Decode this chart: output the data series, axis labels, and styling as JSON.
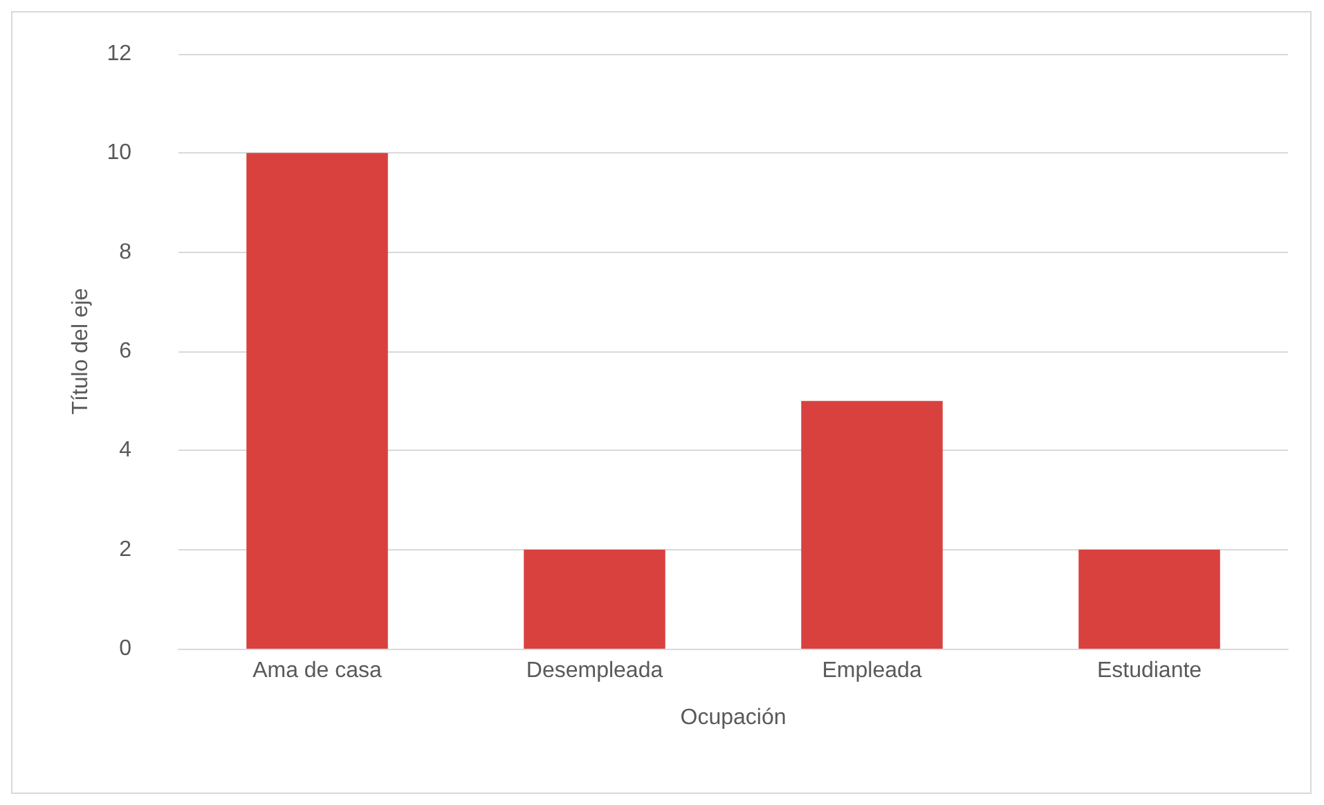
{
  "chart_data": {
    "type": "bar",
    "xlabel": "Ocupación",
    "ylabel": "Título del eje",
    "categories": [
      "Ama de casa",
      "Desempleada",
      "Empleada",
      "Estudiante"
    ],
    "values": [
      10,
      2,
      5,
      2
    ],
    "color": "#d9413f",
    "ylim": [
      0,
      12
    ],
    "yticks": [
      0,
      2,
      4,
      6,
      8,
      10,
      12
    ],
    "grid": "y"
  }
}
